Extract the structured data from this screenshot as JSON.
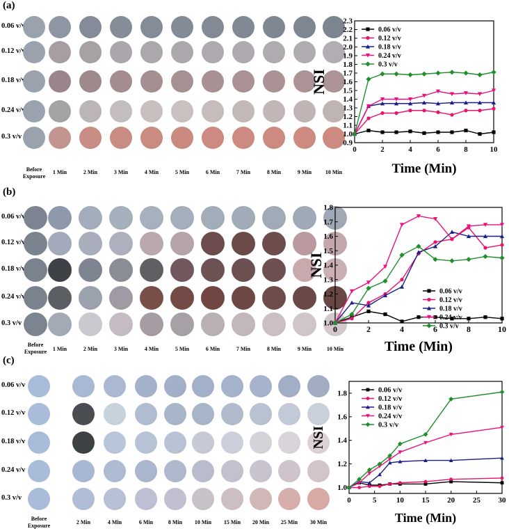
{
  "panels": {
    "a": {
      "label": "(a)",
      "rows": [
        "0.06 v/v",
        "0.12 v/v",
        "0.18 v/v",
        "0.24 v/v",
        "0.3 v/v"
      ],
      "before_line1": "Before",
      "before_line2": "Exposure",
      "columns": [
        "1 Min",
        "2 Min",
        "3 Min",
        "4 Min",
        "5 Min",
        "6 Min",
        "7 Min",
        "8 Min",
        "9 Min",
        "10 Min"
      ],
      "sample_colors": [
        [
          "#8d96a2",
          "#838c98",
          "#858d99",
          "#848c98",
          "#838b97",
          "#828a96",
          "#818995",
          "#7f8793",
          "#7e8692",
          "#7d8591"
        ],
        [
          "#a69ea2",
          "#a7a1a6",
          "#aba6ab",
          "#aca7ac",
          "#ada8ad",
          "#aea9ae",
          "#afaaaf",
          "#b0abb0",
          "#b1acb1",
          "#b2adb2"
        ],
        [
          "#9a868a",
          "#9e8a8c",
          "#a48d8e",
          "#a58f90",
          "#a79092",
          "#a99193",
          "#aa9294",
          "#ab9395",
          "#ac9496",
          "#ad9597"
        ],
        [
          "#a5a2a5",
          "#bbb5b5",
          "#c4bdbd",
          "#c8c0bf",
          "#c9c0bf",
          "#c6bcbb",
          "#c3b9b8",
          "#c2b7b6",
          "#c0b5b4",
          "#bfb4b3"
        ],
        [
          "#c49590",
          "#c88e85",
          "#c98c82",
          "#ca8b81",
          "#cb8a80",
          "#cc8a80",
          "#cc8a80",
          "#cd8a80",
          "#cd8a80",
          "#cd8a80"
        ]
      ],
      "before_colors": [
        "#9aa3ad",
        "#9aa3ad",
        "#9aa3ad",
        "#9aa3ad",
        "#9aa3ad"
      ]
    },
    "b": {
      "label": "(b)",
      "rows": [
        "0.06 v/v",
        "0.12 v/v",
        "0.18 v/v",
        "0.24 v/v",
        "0.3 v/v"
      ],
      "before_line1": "Before",
      "before_line2": "Exposure",
      "columns": [
        "1 Min",
        "2 Min",
        "3 Min",
        "4 Min",
        "5 Min",
        "6 Min",
        "7 Min",
        "8 Min",
        "9 Min",
        "10 Min"
      ],
      "sample_colors": [
        [
          "#8e9aab",
          "#a4adbb",
          "#a6b0bd",
          "#a7b1bd",
          "#a5aebb",
          "#a3adba",
          "#a2acb9",
          "#a1abb8",
          "#a0aab7",
          "#9fa9b6"
        ],
        [
          "#a2aabb",
          "#a8aebc",
          "#aeb0bd",
          "#b9a9ae",
          "#b5a5ab",
          "#6c4c4c",
          "#6b4a4a",
          "#6e4d4d",
          "#ba9a9e",
          "#c2a7ab"
        ],
        [
          "#3e4246",
          "#7e8590",
          "#8a8d96",
          "#5f6064",
          "#72585c",
          "#6d5254",
          "#6d5051",
          "#6e5051",
          "#c8a9ac",
          "#caafb3"
        ],
        [
          "#5b5f64",
          "#9ba2ad",
          "#a09aa4",
          "#794f4a",
          "#744a46",
          "#714642",
          "#6e4845",
          "#6d4c4a",
          "#6b4946",
          "#684744"
        ],
        [
          "#a3a9b5",
          "#ccc8d0",
          "#c5bcc3",
          "#a69da4",
          "#a7a0a6",
          "#b9b0b4",
          "#c2b7ba",
          "#cbbfc2",
          "#d0c5c8",
          "#d3c9cc"
        ]
      ],
      "before_colors": [
        "#7d8491",
        "#7b838f",
        "#7a828e",
        "#7a828e",
        "#7c8490"
      ]
    },
    "c": {
      "label": "(c)",
      "rows": [
        "0.06 v/v",
        "0.12 v/v",
        "0.18 v/v",
        "0.24 v/v",
        "0.3 v/v"
      ],
      "before_line1": "Before",
      "before_line2": "Exposure",
      "columns": [
        "2 Min",
        "4 Min",
        "6 Min",
        "8 Min",
        "10 Min",
        "15 Min",
        "20 Min",
        "25 Min",
        "30 Min"
      ],
      "sample_colors": [
        [
          "#a9b9d4",
          "#aab8d1",
          "#a4b1ca",
          "#a2afc8",
          "#a3b0c9",
          "#a5b2cb",
          "#a6b3cc",
          "#a2aec5",
          "#a2adc3"
        ],
        [
          "#4a4e52",
          "#c6d2dc",
          "#b0bccf",
          "#a9b5c9",
          "#a8b4c8",
          "#b0bbcd",
          "#b8c2d1",
          "#c2cad7",
          "#c9d0dc"
        ],
        [
          "#3d4244",
          "#b9c6da",
          "#b6c2d6",
          "#b8c3d5",
          "#c6cad6",
          "#cdd0da",
          "#d3d3da",
          "#d9d4d9",
          "#dcd2d4"
        ],
        [
          "#a8b8d2",
          "#aebbd3",
          "#aab5ce",
          "#b0b8cd",
          "#b8bccd",
          "#c2c1cd",
          "#c9c3cd",
          "#cfc4cb",
          "#d3c4c8"
        ],
        [
          "#b0bdd6",
          "#b8c0d6",
          "#bdbfd2",
          "#c2c0d0",
          "#c9c1ca",
          "#cdbec3",
          "#d2b7b8",
          "#d6afad",
          "#d9a9a5"
        ]
      ],
      "before_colors": [
        "#a8bcd9",
        "#a8bcd9",
        "#a8bcd9",
        "#a8bcd9",
        "#a8bcd9"
      ]
    }
  },
  "chart_data": [
    {
      "type": "line",
      "panel": "a",
      "xlabel": "Time (Min)",
      "ylabel": "NSI",
      "xlim": [
        0,
        10
      ],
      "ylim": [
        0.9,
        2.3
      ],
      "xticks": [
        "0",
        "2",
        "4",
        "6",
        "8",
        "10"
      ],
      "yticks": [
        "0.9",
        "1.0",
        "1.1",
        "1.2",
        "1.3",
        "1.4",
        "1.5",
        "1.6",
        "1.7",
        "1.8",
        "1.9",
        "2.0",
        "2.1",
        "2.2",
        "2.3"
      ],
      "x": [
        0,
        1,
        2,
        3,
        4,
        5,
        6,
        7,
        8,
        9,
        10
      ],
      "series": [
        {
          "name": "0.06 v/v",
          "color": "#000000",
          "marker": "square",
          "values": [
            1.0,
            1.04,
            1.02,
            1.02,
            1.03,
            1.01,
            1.02,
            1.02,
            1.04,
            1.0,
            1.02
          ]
        },
        {
          "name": "0.12 v/v",
          "color": "#e8136a",
          "marker": "circle",
          "values": [
            1.0,
            1.18,
            1.24,
            1.24,
            1.27,
            1.27,
            1.25,
            1.22,
            1.27,
            1.27,
            1.29
          ]
        },
        {
          "name": "0.18 v/v",
          "color": "#1b1f87",
          "marker": "triangle-up",
          "values": [
            1.0,
            1.32,
            1.35,
            1.35,
            1.35,
            1.36,
            1.35,
            1.36,
            1.36,
            1.36,
            1.36
          ]
        },
        {
          "name": "0.24 v/v",
          "color": "#ec0f7c",
          "marker": "triangle-down",
          "values": [
            1.0,
            1.32,
            1.4,
            1.4,
            1.4,
            1.44,
            1.49,
            1.46,
            1.47,
            1.46,
            1.5
          ]
        },
        {
          "name": "0.3 v/v",
          "color": "#1e8f2b",
          "marker": "diamond",
          "values": [
            1.0,
            1.63,
            1.69,
            1.69,
            1.68,
            1.69,
            1.7,
            1.71,
            1.7,
            1.68,
            1.71
          ]
        }
      ],
      "legend": "top-left"
    },
    {
      "type": "line",
      "panel": "b",
      "xlabel": "Time (Min)",
      "ylabel": "NSI",
      "xlim": [
        0,
        10
      ],
      "ylim": [
        1.0,
        1.8
      ],
      "xticks": [
        "0",
        "2",
        "4",
        "6",
        "8",
        "10"
      ],
      "yticks": [
        "1.0",
        "1.1",
        "1.2",
        "1.3",
        "1.4",
        "1.5",
        "1.6",
        "1.7",
        "1.8"
      ],
      "x": [
        0,
        1,
        2,
        3,
        4,
        5,
        6,
        7,
        8,
        9,
        10
      ],
      "series": [
        {
          "name": "0.06 v/v",
          "color": "#000000",
          "marker": "square",
          "values": [
            1.0,
            1.04,
            1.08,
            1.06,
            1.01,
            1.04,
            1.04,
            1.03,
            1.03,
            1.04,
            1.03
          ]
        },
        {
          "name": "0.12 v/v",
          "color": "#e8136a",
          "marker": "circle",
          "values": [
            1.0,
            1.03,
            1.14,
            1.2,
            1.3,
            1.48,
            1.56,
            1.58,
            1.66,
            1.52,
            1.54
          ]
        },
        {
          "name": "0.18 v/v",
          "color": "#1b1f87",
          "marker": "triangle-up",
          "values": [
            1.0,
            1.14,
            1.12,
            1.19,
            1.25,
            1.49,
            1.53,
            1.63,
            1.6,
            1.6,
            1.6
          ]
        },
        {
          "name": "0.24 v/v",
          "color": "#ec0f7c",
          "marker": "triangle-down",
          "values": [
            1.0,
            1.22,
            1.28,
            1.39,
            1.68,
            1.74,
            1.72,
            1.58,
            1.67,
            1.68,
            1.68
          ]
        },
        {
          "name": "0.3 v/v",
          "color": "#1e8f2b",
          "marker": "diamond",
          "values": [
            1.0,
            1.06,
            1.24,
            1.29,
            1.47,
            1.53,
            1.44,
            1.43,
            1.44,
            1.46,
            1.45
          ]
        }
      ],
      "legend": "bottom-right"
    },
    {
      "type": "line",
      "panel": "c",
      "xlabel": "Time (Min)",
      "ylabel": "NSI",
      "xlim": [
        0,
        30
      ],
      "ylim": [
        0.95,
        1.9
      ],
      "xticks": [
        "0",
        "5",
        "10",
        "15",
        "20",
        "25",
        "30"
      ],
      "yticks": [
        "1.0",
        "1.2",
        "1.4",
        "1.6",
        "1.8"
      ],
      "x": [
        0,
        2,
        4,
        6,
        8,
        10,
        15,
        20,
        30
      ],
      "series": [
        {
          "name": "0.06 v/v",
          "color": "#000000",
          "marker": "square",
          "values": [
            1.0,
            1.04,
            1.02,
            1.02,
            1.03,
            1.03,
            1.03,
            1.05,
            1.04
          ]
        },
        {
          "name": "0.12 v/v",
          "color": "#e8136a",
          "marker": "circle",
          "values": [
            1.0,
            1.0,
            1.01,
            1.01,
            1.03,
            1.04,
            1.05,
            1.07,
            1.08
          ]
        },
        {
          "name": "0.18 v/v",
          "color": "#1b1f87",
          "marker": "triangle-up",
          "values": [
            1.0,
            1.05,
            1.04,
            1.11,
            1.21,
            1.22,
            1.23,
            1.23,
            1.25
          ]
        },
        {
          "name": "0.24 v/v",
          "color": "#ec0f7c",
          "marker": "triangle-down",
          "values": [
            1.0,
            1.04,
            1.12,
            1.18,
            1.24,
            1.3,
            1.38,
            1.45,
            1.51
          ]
        },
        {
          "name": "0.3 v/v",
          "color": "#1e8f2b",
          "marker": "diamond",
          "values": [
            1.0,
            1.07,
            1.15,
            1.2,
            1.27,
            1.37,
            1.45,
            1.75,
            1.81
          ]
        }
      ],
      "legend": "top-left"
    }
  ]
}
